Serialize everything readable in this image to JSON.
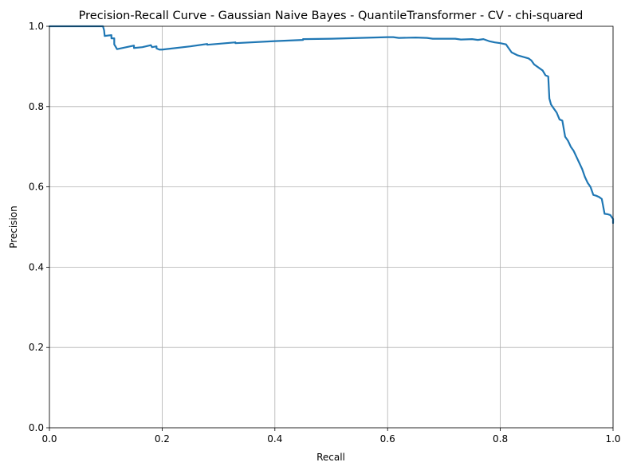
{
  "chart_data": {
    "type": "line",
    "title": "Precision-Recall Curve - Gaussian Naive Bayes - QuantileTransformer - CV - chi-squared",
    "xlabel": "Recall",
    "ylabel": "Precision",
    "xlim": [
      0.0,
      1.0
    ],
    "ylim": [
      0.0,
      1.0
    ],
    "xticks": [
      "0.0",
      "0.2",
      "0.4",
      "0.6",
      "0.8",
      "1.0"
    ],
    "yticks": [
      "0.0",
      "0.2",
      "0.4",
      "0.6",
      "0.8",
      "1.0"
    ],
    "grid": true,
    "line_color": "#1f77b4",
    "series": [
      {
        "x": [
          0.0,
          0.095,
          0.097,
          0.098,
          0.11,
          0.11,
          0.115,
          0.115,
          0.12,
          0.15,
          0.15,
          0.165,
          0.18,
          0.182,
          0.19,
          0.19,
          0.195,
          0.2,
          0.25,
          0.28,
          0.28,
          0.33,
          0.33,
          0.4,
          0.45,
          0.45,
          0.5,
          0.55,
          0.6,
          0.61,
          0.62,
          0.65,
          0.67,
          0.68,
          0.7,
          0.72,
          0.73,
          0.75,
          0.76,
          0.77,
          0.78,
          0.79,
          0.8,
          0.81,
          0.815,
          0.82,
          0.83,
          0.84,
          0.85,
          0.855,
          0.86,
          0.87,
          0.875,
          0.88,
          0.885,
          0.887,
          0.89,
          0.895,
          0.9,
          0.905,
          0.91,
          0.915,
          0.92,
          0.925,
          0.93,
          0.935,
          0.94,
          0.945,
          0.95,
          0.955,
          0.96,
          0.965,
          0.97,
          0.975,
          0.98,
          0.985,
          0.99,
          0.995,
          1.0,
          1.0
        ],
        "y": [
          1.0,
          1.0,
          0.99,
          0.976,
          0.978,
          0.97,
          0.97,
          0.955,
          0.943,
          0.952,
          0.946,
          0.948,
          0.953,
          0.948,
          0.95,
          0.945,
          0.942,
          0.942,
          0.95,
          0.956,
          0.954,
          0.96,
          0.958,
          0.963,
          0.966,
          0.968,
          0.969,
          0.971,
          0.973,
          0.973,
          0.971,
          0.972,
          0.971,
          0.969,
          0.969,
          0.969,
          0.967,
          0.968,
          0.966,
          0.968,
          0.963,
          0.96,
          0.958,
          0.955,
          0.945,
          0.935,
          0.928,
          0.924,
          0.92,
          0.915,
          0.905,
          0.895,
          0.89,
          0.878,
          0.875,
          0.82,
          0.805,
          0.795,
          0.785,
          0.768,
          0.765,
          0.725,
          0.715,
          0.7,
          0.69,
          0.675,
          0.66,
          0.645,
          0.625,
          0.61,
          0.6,
          0.58,
          0.578,
          0.575,
          0.57,
          0.533,
          0.532,
          0.53,
          0.52,
          0.51
        ]
      }
    ]
  }
}
